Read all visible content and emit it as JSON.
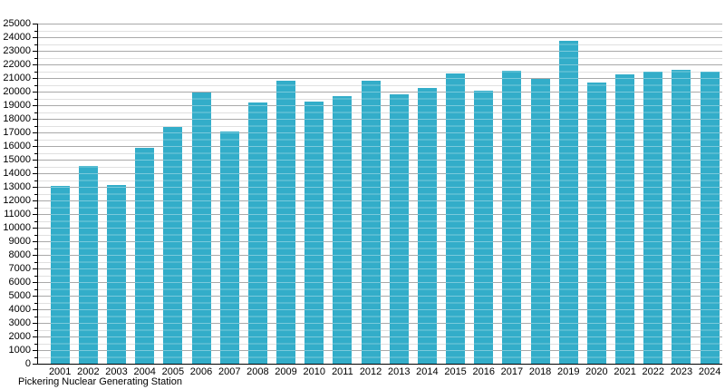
{
  "chart_data": {
    "type": "bar",
    "title": "Pickering Nuclear Generating Station",
    "xlabel": "",
    "ylabel": "",
    "categories": [
      "2001",
      "2002",
      "2003",
      "2004",
      "2005",
      "2006",
      "2007",
      "2008",
      "2009",
      "2010",
      "2011",
      "2012",
      "2013",
      "2014",
      "2015",
      "2016",
      "2017",
      "2018",
      "2019",
      "2020",
      "2021",
      "2022",
      "2023",
      "2024"
    ],
    "values": [
      13100,
      14550,
      13150,
      15850,
      17400,
      19930,
      17080,
      19230,
      20770,
      19280,
      19700,
      20800,
      19800,
      20250,
      21340,
      20100,
      21550,
      20950,
      23710,
      20690,
      21260,
      21480,
      21610,
      21460
    ],
    "ylim": [
      0,
      25000
    ],
    "y_major_step": 1000,
    "y_minor_step": 500,
    "y_tick_labels": [
      "0",
      "1000",
      "2000",
      "3000",
      "4000",
      "5000",
      "6000",
      "7000",
      "8000",
      "9000",
      "10000",
      "11000",
      "12000",
      "13000",
      "14000",
      "15000",
      "16000",
      "17000",
      "18000",
      "19000",
      "20000",
      "21000",
      "22000",
      "23000",
      "24000",
      "25000"
    ],
    "grid": "horizontal major+minor",
    "legend": "none",
    "colors": {
      "bar": "#33adc9",
      "bar_grid_overlay": "rgba(255,255,255,0.35)",
      "major_grid": "#a9a9a9",
      "minor_grid": "#e0e0e0",
      "axis": "#000000",
      "text": "#000000",
      "background": "#ffffff"
    }
  }
}
